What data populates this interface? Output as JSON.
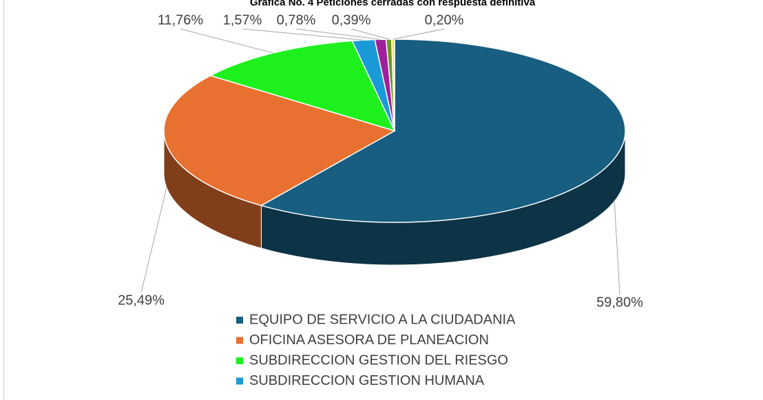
{
  "chart_data": {
    "type": "pie",
    "title": "Gráfica No. 4 Peticiones cerradas con respuesta definitiva",
    "categories": [
      "EQUIPO DE SERVICIO A LA CIUDADANIA",
      "OFICINA ASESORA DE PLANEACION",
      "SUBDIRECCION GESTION DEL RIESGO",
      "SUBDIRECCION GESTION HUMANA",
      null,
      null,
      null
    ],
    "values": [
      59.8,
      25.49,
      11.76,
      1.57,
      0.78,
      0.39,
      0.2
    ],
    "value_labels": [
      "59,80%",
      "25,49%",
      "11,76%",
      "1,57%",
      "0,78%",
      "0,39%",
      "0,20%"
    ],
    "colors": [
      "#175e80",
      "#e87030",
      "#1ef01e",
      "#1a9ad6",
      "#a0209c",
      "#6a9a20",
      "#f0e040"
    ]
  }
}
